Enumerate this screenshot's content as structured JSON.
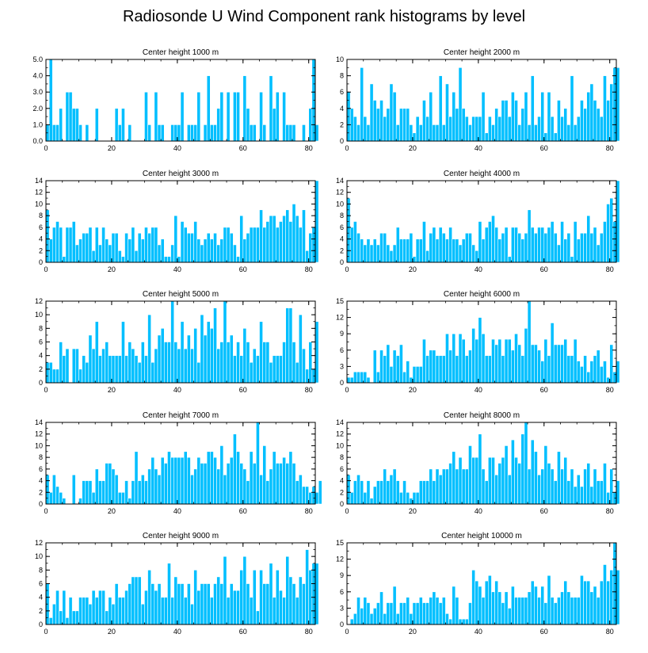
{
  "title": "Radiosonde U Wind Component rank histograms by level",
  "colors": {
    "bar": "#00BFFF",
    "bar_edge": "#ffffff",
    "axis": "#000000"
  },
  "chart_data": [
    {
      "type": "bar",
      "title": "Center height 1000 m",
      "xlim": [
        0,
        82
      ],
      "ylim": [
        0,
        5
      ],
      "xticks": [
        "0",
        "20",
        "40",
        "60",
        "80"
      ],
      "yticks": [
        "0.0",
        "1.0",
        "2.0",
        "3.0",
        "4.0",
        "5.0"
      ],
      "values": [
        1,
        5,
        1,
        1,
        2,
        0,
        3,
        3,
        2,
        2,
        1,
        0,
        1,
        0,
        0,
        2,
        0,
        0,
        0,
        0,
        0,
        2,
        1,
        2,
        0,
        1,
        0,
        0,
        0,
        0,
        3,
        1,
        0,
        3,
        1,
        1,
        0,
        0,
        1,
        1,
        1,
        3,
        0,
        1,
        1,
        1,
        3,
        0,
        1,
        4,
        1,
        1,
        2,
        3,
        0,
        3,
        0,
        3,
        3,
        0,
        4,
        2,
        1,
        1,
        0,
        3,
        1,
        0,
        4,
        2,
        3,
        0,
        3,
        1,
        1,
        1,
        0,
        0,
        1,
        0,
        2,
        5,
        1
      ]
    },
    {
      "type": "bar",
      "title": "Center height 2000 m",
      "xlim": [
        0,
        82
      ],
      "ylim": [
        0,
        10
      ],
      "xticks": [
        "0",
        "20",
        "40",
        "60",
        "80"
      ],
      "yticks": [
        "0",
        "2",
        "4",
        "6",
        "8",
        "10"
      ],
      "values": [
        6,
        4,
        3,
        2,
        9,
        3,
        2,
        7,
        5,
        4,
        5,
        3,
        4,
        7,
        6,
        2,
        4,
        4,
        4,
        2,
        1,
        3,
        2,
        5,
        3,
        6,
        2,
        2,
        8,
        2,
        7,
        3,
        6,
        4,
        9,
        4,
        3,
        2,
        3,
        3,
        3,
        6,
        1,
        3,
        2,
        4,
        3,
        5,
        5,
        3,
        6,
        5,
        2,
        4,
        6,
        2,
        8,
        2,
        3,
        6,
        1,
        6,
        3,
        1,
        5,
        3,
        4,
        2,
        8,
        2,
        3,
        5,
        4,
        6,
        7,
        5,
        4,
        3,
        8,
        5,
        7,
        9,
        9
      ]
    },
    {
      "type": "bar",
      "title": "Center height 3000 m",
      "xlim": [
        0,
        82
      ],
      "ylim": [
        0,
        14
      ],
      "xticks": [
        "0",
        "20",
        "40",
        "60",
        "80"
      ],
      "yticks": [
        "0",
        "2",
        "4",
        "6",
        "8",
        "10",
        "12",
        "14"
      ],
      "values": [
        9,
        4,
        6,
        7,
        6,
        1,
        6,
        6,
        7,
        3,
        4,
        5,
        5,
        6,
        2,
        6,
        3,
        6,
        4,
        3,
        5,
        5,
        2,
        1,
        5,
        4,
        6,
        2,
        5,
        4,
        6,
        5,
        6,
        6,
        3,
        4,
        1,
        1,
        3,
        8,
        1,
        7,
        6,
        5,
        5,
        7,
        4,
        3,
        4,
        5,
        4,
        5,
        3,
        4,
        6,
        6,
        5,
        3,
        1,
        8,
        4,
        5,
        6,
        6,
        6,
        9,
        6,
        7,
        8,
        8,
        6,
        7,
        8,
        9,
        7,
        10,
        8,
        6,
        9,
        2,
        5,
        6,
        14
      ]
    },
    {
      "type": "bar",
      "title": "Center height 4000 m",
      "xlim": [
        0,
        82
      ],
      "ylim": [
        0,
        14
      ],
      "xticks": [
        "0",
        "20",
        "40",
        "60",
        "80"
      ],
      "yticks": [
        "0",
        "2",
        "4",
        "6",
        "8",
        "10",
        "12",
        "14"
      ],
      "values": [
        11,
        6,
        7,
        5,
        4,
        3,
        4,
        3,
        4,
        3,
        5,
        5,
        3,
        2,
        3,
        6,
        4,
        4,
        4,
        5,
        1,
        4,
        4,
        7,
        2,
        5,
        6,
        4,
        6,
        5,
        4,
        6,
        4,
        4,
        3,
        4,
        5,
        5,
        3,
        2,
        7,
        4,
        6,
        7,
        8,
        6,
        4,
        5,
        6,
        1,
        6,
        6,
        5,
        4,
        5,
        9,
        6,
        5,
        6,
        6,
        5,
        6,
        7,
        5,
        3,
        7,
        4,
        5,
        1,
        7,
        4,
        5,
        5,
        8,
        5,
        6,
        3,
        5,
        7,
        10,
        11,
        7,
        14
      ]
    },
    {
      "type": "bar",
      "title": "Center height 5000 m",
      "xlim": [
        0,
        82
      ],
      "ylim": [
        0,
        12
      ],
      "xticks": [
        "0",
        "20",
        "40",
        "60",
        "80"
      ],
      "yticks": [
        "0",
        "2",
        "4",
        "6",
        "8",
        "10",
        "12"
      ],
      "values": [
        3,
        3,
        2,
        2,
        6,
        4,
        5,
        0,
        5,
        5,
        2,
        4,
        3,
        7,
        5,
        9,
        4,
        5,
        6,
        4,
        4,
        4,
        4,
        9,
        4,
        6,
        5,
        4,
        3,
        6,
        4,
        10,
        3,
        5,
        7,
        8,
        6,
        6,
        12,
        6,
        5,
        9,
        5,
        7,
        5,
        8,
        3,
        10,
        7,
        9,
        8,
        11,
        5,
        6,
        12,
        6,
        7,
        4,
        6,
        4,
        8,
        6,
        3,
        5,
        4,
        9,
        6,
        6,
        3,
        4,
        4,
        4,
        6,
        11,
        11,
        6,
        3,
        10,
        5,
        2,
        6,
        2,
        9
      ]
    },
    {
      "type": "bar",
      "title": "Center height 6000 m",
      "xlim": [
        0,
        82
      ],
      "ylim": [
        0,
        15
      ],
      "xticks": [
        "0",
        "20",
        "40",
        "60",
        "80"
      ],
      "yticks": [
        "0",
        "3",
        "6",
        "9",
        "12",
        "15"
      ],
      "values": [
        1,
        1,
        2,
        2,
        2,
        2,
        1,
        0,
        6,
        2,
        6,
        5,
        7,
        3,
        6,
        5,
        7,
        2,
        4,
        1,
        3,
        3,
        3,
        8,
        5,
        6,
        6,
        5,
        5,
        5,
        9,
        6,
        9,
        5,
        9,
        8,
        5,
        6,
        10,
        8,
        12,
        9,
        5,
        5,
        8,
        7,
        8,
        5,
        8,
        8,
        6,
        9,
        7,
        5,
        10,
        15,
        7,
        7,
        6,
        4,
        8,
        5,
        11,
        7,
        7,
        7,
        8,
        5,
        5,
        8,
        4,
        3,
        5,
        2,
        4,
        5,
        6,
        3,
        4,
        1,
        7,
        2,
        4
      ]
    },
    {
      "type": "bar",
      "title": "Center height 7000 m",
      "xlim": [
        0,
        82
      ],
      "ylim": [
        0,
        14
      ],
      "xticks": [
        "0",
        "20",
        "40",
        "60",
        "80"
      ],
      "yticks": [
        "0",
        "2",
        "4",
        "6",
        "8",
        "10",
        "12",
        "14"
      ],
      "values": [
        5,
        2,
        5,
        3,
        2,
        1,
        0,
        0,
        5,
        0,
        1,
        4,
        4,
        4,
        2,
        6,
        4,
        4,
        7,
        7,
        6,
        5,
        2,
        2,
        4,
        1,
        4,
        9,
        4,
        5,
        4,
        6,
        8,
        6,
        5,
        8,
        7,
        9,
        8,
        8,
        8,
        8,
        9,
        8,
        5,
        6,
        8,
        7,
        7,
        9,
        9,
        8,
        6,
        10,
        5,
        7,
        8,
        12,
        9,
        7,
        6,
        4,
        9,
        7,
        14,
        5,
        10,
        4,
        6,
        9,
        7,
        7,
        8,
        7,
        9,
        7,
        4,
        5,
        3,
        3,
        2,
        3,
        2,
        4
      ]
    },
    {
      "type": "bar",
      "title": "Center height 8000 m",
      "xlim": [
        0,
        82
      ],
      "ylim": [
        0,
        14
      ],
      "xticks": [
        "0",
        "20",
        "40",
        "60",
        "80"
      ],
      "yticks": [
        "0",
        "2",
        "4",
        "6",
        "8",
        "10",
        "12",
        "14"
      ],
      "values": [
        5,
        2,
        4,
        5,
        4,
        2,
        4,
        1,
        3,
        4,
        4,
        6,
        4,
        5,
        6,
        4,
        2,
        4,
        2,
        1,
        2,
        2,
        4,
        4,
        4,
        6,
        4,
        6,
        5,
        6,
        6,
        7,
        9,
        6,
        8,
        6,
        6,
        10,
        8,
        8,
        12,
        6,
        4,
        8,
        8,
        5,
        7,
        8,
        10,
        5,
        11,
        8,
        7,
        12,
        14,
        6,
        11,
        9,
        5,
        6,
        10,
        7,
        6,
        4,
        9,
        6,
        8,
        4,
        6,
        3,
        5,
        3,
        6,
        7,
        3,
        6,
        4,
        4,
        7,
        2,
        6,
        2,
        4
      ]
    },
    {
      "type": "bar",
      "title": "Center height 9000 m",
      "xlim": [
        0,
        82
      ],
      "ylim": [
        0,
        12
      ],
      "xticks": [
        "0",
        "20",
        "40",
        "60",
        "80"
      ],
      "yticks": [
        "0",
        "2",
        "4",
        "6",
        "8",
        "10",
        "12"
      ],
      "values": [
        6,
        1,
        3,
        5,
        2,
        5,
        1,
        4,
        2,
        2,
        4,
        4,
        4,
        3,
        5,
        4,
        5,
        5,
        2,
        4,
        3,
        6,
        4,
        4,
        5,
        6,
        7,
        7,
        7,
        3,
        5,
        8,
        6,
        5,
        6,
        4,
        4,
        9,
        4,
        7,
        6,
        6,
        4,
        6,
        3,
        8,
        5,
        6,
        6,
        6,
        4,
        6,
        7,
        6,
        10,
        4,
        6,
        5,
        5,
        8,
        10,
        6,
        4,
        8,
        2,
        8,
        6,
        6,
        9,
        4,
        8,
        5,
        4,
        10,
        7,
        6,
        4,
        7,
        6,
        11,
        8,
        9,
        9
      ]
    },
    {
      "type": "bar",
      "title": "Center height 10000 m",
      "xlim": [
        0,
        82
      ],
      "ylim": [
        0,
        15
      ],
      "xticks": [
        "0",
        "20",
        "40",
        "60",
        "80"
      ],
      "yticks": [
        "0",
        "3",
        "6",
        "9",
        "12",
        "15"
      ],
      "values": [
        0,
        1,
        2,
        5,
        3,
        5,
        4,
        2,
        3,
        4,
        6,
        2,
        4,
        4,
        7,
        2,
        4,
        4,
        5,
        2,
        4,
        4,
        5,
        4,
        4,
        5,
        6,
        5,
        4,
        5,
        2,
        1,
        7,
        5,
        1,
        1,
        1,
        4,
        10,
        8,
        7,
        5,
        8,
        9,
        6,
        8,
        6,
        4,
        6,
        3,
        7,
        5,
        5,
        5,
        5,
        6,
        8,
        7,
        5,
        7,
        4,
        9,
        5,
        4,
        5,
        6,
        8,
        6,
        5,
        5,
        5,
        9,
        8,
        8,
        6,
        7,
        5,
        8,
        11,
        8,
        10,
        15,
        10
      ]
    }
  ]
}
